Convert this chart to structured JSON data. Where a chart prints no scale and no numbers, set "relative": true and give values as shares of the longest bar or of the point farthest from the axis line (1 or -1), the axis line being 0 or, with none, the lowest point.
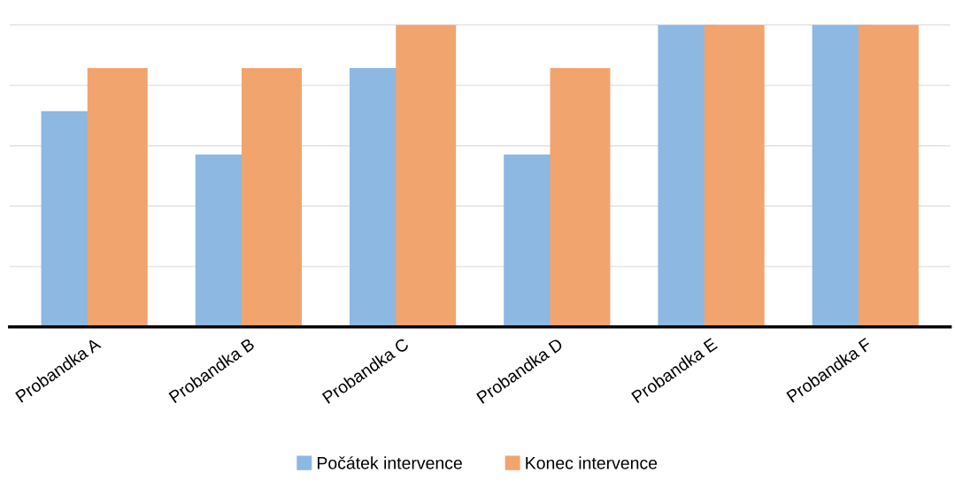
{
  "chart_data": {
    "type": "bar",
    "relative": true,
    "categories": [
      "Probandka A",
      "Probandka B",
      "Probandka C",
      "Probandka D",
      "Probandka E",
      "Probandka F"
    ],
    "series": [
      {
        "name": "Počátek intervence",
        "color": "#8cb8e1",
        "values": [
          0.714,
          0.571,
          0.857,
          0.571,
          1,
          1
        ]
      },
      {
        "name": "Konec intervence",
        "color": "#f2a46e",
        "values": [
          0.857,
          0.857,
          1,
          0.857,
          1,
          1
        ]
      }
    ],
    "grid": "y",
    "legend": "bottom"
  }
}
